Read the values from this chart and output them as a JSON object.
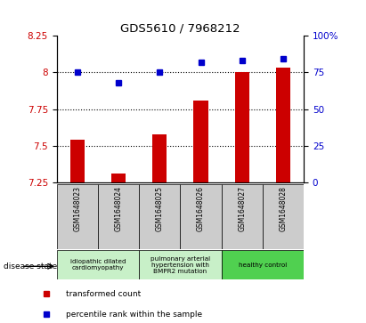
{
  "title": "GDS5610 / 7968212",
  "samples": [
    "GSM1648023",
    "GSM1648024",
    "GSM1648025",
    "GSM1648026",
    "GSM1648027",
    "GSM1648028"
  ],
  "transformed_counts": [
    7.54,
    7.31,
    7.58,
    7.81,
    8.0,
    8.03
  ],
  "percentile_ranks": [
    75,
    68,
    75,
    82,
    83,
    84
  ],
  "ylim_left": [
    7.25,
    8.25
  ],
  "ylim_right": [
    0,
    100
  ],
  "yticks_left": [
    7.25,
    7.5,
    7.75,
    8.0,
    8.25
  ],
  "yticks_right": [
    0,
    25,
    50,
    75,
    100
  ],
  "ytick_labels_left": [
    "7.25",
    "7.5",
    "7.75",
    "8",
    "8.25"
  ],
  "ytick_labels_right": [
    "0",
    "25",
    "50",
    "75",
    "100%"
  ],
  "hlines": [
    7.5,
    7.75,
    8.0
  ],
  "bar_color": "#cc0000",
  "dot_color": "#0000cc",
  "bar_width": 0.35,
  "groups": [
    {
      "label": "idiopathic dilated\ncardiomyopathy",
      "start": 0,
      "end": 1,
      "color": "#c8f0c8"
    },
    {
      "label": "pulmonary arterial\nhypertension with\nBMPR2 mutation",
      "start": 2,
      "end": 3,
      "color": "#c8f0c8"
    },
    {
      "label": "healthy control",
      "start": 4,
      "end": 5,
      "color": "#50d050"
    }
  ],
  "legend_items": [
    {
      "label": "transformed count",
      "color": "#cc0000"
    },
    {
      "label": "percentile rank within the sample",
      "color": "#0000cc"
    }
  ],
  "disease_state_label": "disease state",
  "bg_color_xticklabels": "#cccccc",
  "tick_label_color_left": "#cc0000",
  "tick_label_color_right": "#0000cc",
  "fig_width": 4.11,
  "fig_height": 3.63,
  "dpi": 100
}
